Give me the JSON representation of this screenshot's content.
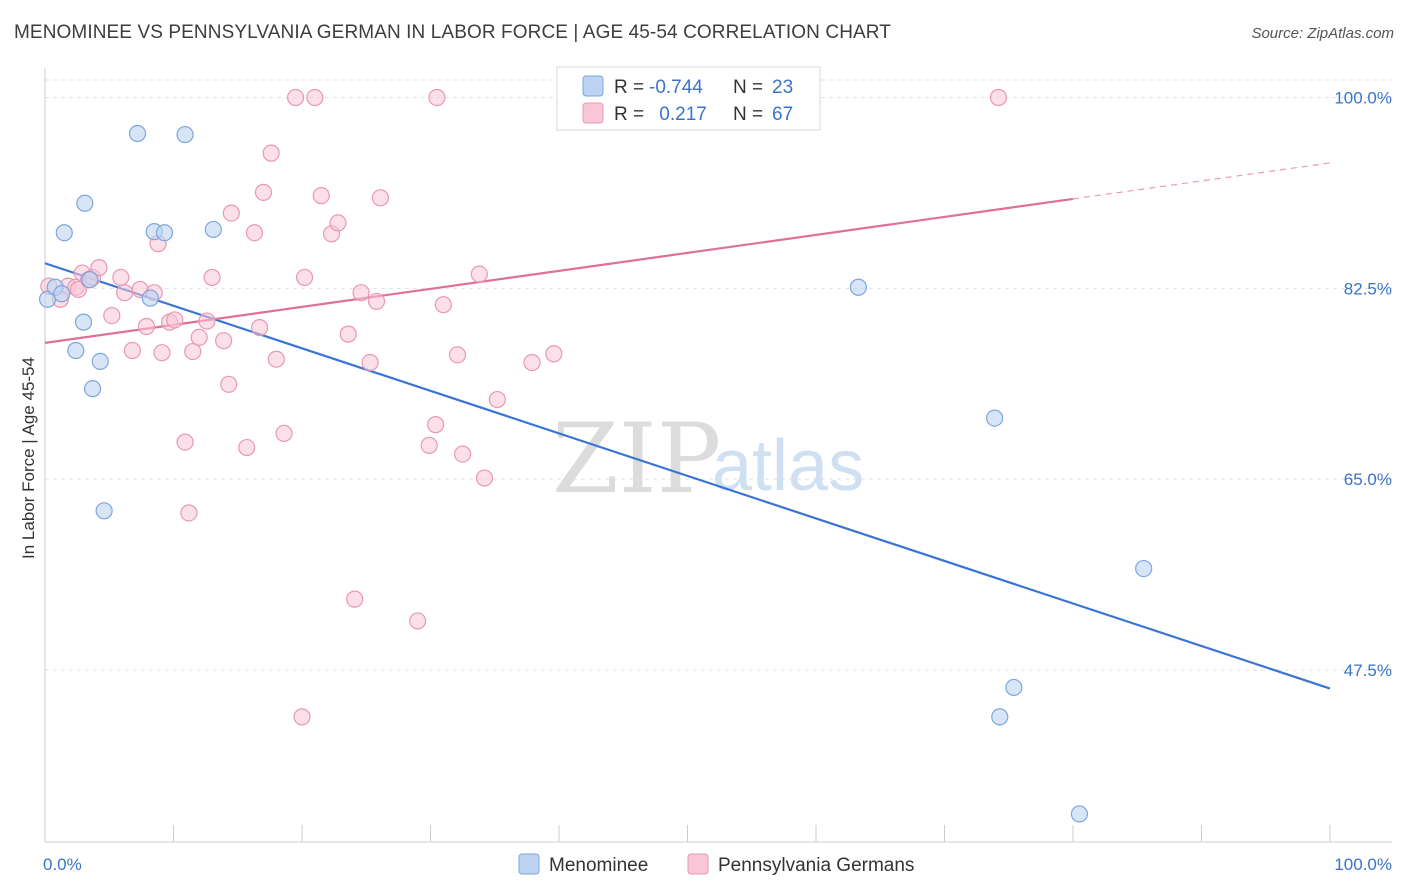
{
  "header": {
    "title": "MENOMINEE VS PENNSYLVANIA GERMAN IN LABOR FORCE | AGE 45-54 CORRELATION CHART",
    "source": "Source: ZipAtlas.com"
  },
  "watermark": {
    "zip": "ZIP",
    "atlas": "atlas"
  },
  "legend_box": {
    "rows": [
      {
        "r_label": "R =",
        "r_value": "-0.744",
        "n_label": "N =",
        "n_value": "23"
      },
      {
        "r_label": "R =",
        "r_value": " 0.217",
        "n_label": "N =",
        "n_value": "67"
      }
    ]
  },
  "bottom_legend": [
    {
      "label": "Menominee"
    },
    {
      "label": "Pennsylvania Germans"
    }
  ],
  "colors": {
    "blue_fill": "#bcd4f2",
    "blue_stroke": "#7ea6dc",
    "blue_line": "#3a74d4",
    "pink_fill": "#f8c6d6",
    "pink_stroke": "#e998b4",
    "pink_line": "#e07098",
    "grid": "#e2e2e2",
    "tick_text": "#3a74c8"
  },
  "chart_data": {
    "type": "scatter",
    "title": "MENOMINEE VS PENNSYLVANIA GERMAN IN LABOR FORCE | AGE 45-54 CORRELATION CHART",
    "xlabel": "",
    "ylabel": "In Labor Force | Age 45-54",
    "xlim": [
      0,
      100
    ],
    "ylim": [
      32,
      102
    ],
    "x_tick_labels": [
      "0.0%",
      "100.0%"
    ],
    "y_ticks": [
      47.5,
      65.0,
      82.5,
      100.0
    ],
    "y_tick_labels": [
      "47.5%",
      "65.0%",
      "82.5%",
      "100.0%"
    ],
    "grid": true,
    "series": [
      {
        "name": "Menominee",
        "r": -0.744,
        "n": 23,
        "points": [
          [
            0.2,
            81.5
          ],
          [
            0.8,
            82.6
          ],
          [
            1.3,
            82.0
          ],
          [
            1.5,
            87.6
          ],
          [
            3.0,
            79.4
          ],
          [
            2.4,
            76.8
          ],
          [
            3.1,
            90.3
          ],
          [
            3.5,
            83.3
          ],
          [
            3.7,
            73.3
          ],
          [
            4.3,
            75.8
          ],
          [
            4.6,
            62.1
          ],
          [
            7.2,
            96.7
          ],
          [
            8.2,
            81.6
          ],
          [
            8.5,
            87.7
          ],
          [
            9.3,
            87.6
          ],
          [
            10.9,
            96.6
          ],
          [
            13.1,
            87.9
          ],
          [
            63.3,
            82.6
          ],
          [
            73.9,
            70.6
          ],
          [
            74.3,
            43.2
          ],
          [
            75.4,
            45.9
          ],
          [
            80.5,
            34.3
          ],
          [
            85.5,
            56.8
          ]
        ],
        "trend": {
          "x": [
            0,
            100
          ],
          "y": [
            84.8,
            45.8
          ]
        }
      },
      {
        "name": "Pennsylvania Germans",
        "r": 0.217,
        "n": 67,
        "points": [
          [
            0.3,
            82.7
          ],
          [
            1.2,
            81.5
          ],
          [
            1.8,
            82.7
          ],
          [
            2.4,
            82.6
          ],
          [
            2.6,
            82.4
          ],
          [
            2.9,
            83.9
          ],
          [
            3.4,
            83.3
          ],
          [
            3.7,
            83.5
          ],
          [
            4.2,
            84.4
          ],
          [
            5.2,
            80.0
          ],
          [
            5.9,
            83.5
          ],
          [
            6.2,
            82.1
          ],
          [
            6.8,
            76.8
          ],
          [
            7.4,
            82.4
          ],
          [
            7.9,
            79.0
          ],
          [
            8.5,
            82.1
          ],
          [
            8.8,
            86.6
          ],
          [
            9.1,
            76.6
          ],
          [
            9.7,
            79.4
          ],
          [
            10.1,
            79.6
          ],
          [
            10.9,
            68.4
          ],
          [
            11.2,
            61.9
          ],
          [
            11.5,
            76.7
          ],
          [
            12.0,
            78.0
          ],
          [
            12.6,
            79.5
          ],
          [
            13.0,
            83.5
          ],
          [
            13.9,
            77.7
          ],
          [
            14.3,
            73.7
          ],
          [
            14.5,
            89.4
          ],
          [
            15.7,
            67.9
          ],
          [
            16.3,
            87.6
          ],
          [
            16.7,
            78.9
          ],
          [
            17.0,
            91.3
          ],
          [
            17.6,
            94.9
          ],
          [
            18.0,
            76.0
          ],
          [
            18.6,
            69.2
          ],
          [
            19.5,
            100.0
          ],
          [
            20.0,
            43.2
          ],
          [
            20.2,
            83.5
          ],
          [
            21.0,
            100.0
          ],
          [
            21.5,
            91.0
          ],
          [
            22.3,
            87.5
          ],
          [
            22.8,
            88.5
          ],
          [
            23.6,
            78.3
          ],
          [
            24.1,
            54.0
          ],
          [
            24.6,
            82.1
          ],
          [
            25.3,
            75.7
          ],
          [
            25.8,
            81.3
          ],
          [
            26.1,
            90.8
          ],
          [
            29.0,
            52.0
          ],
          [
            29.9,
            68.1
          ],
          [
            30.4,
            70.0
          ],
          [
            30.5,
            100.0
          ],
          [
            31.0,
            81.0
          ],
          [
            32.1,
            76.4
          ],
          [
            32.5,
            67.3
          ],
          [
            33.8,
            83.8
          ],
          [
            34.2,
            65.1
          ],
          [
            35.2,
            72.3
          ],
          [
            37.9,
            75.7
          ],
          [
            39.6,
            76.5
          ],
          [
            46.5,
            100.0
          ],
          [
            47.0,
            100.0
          ],
          [
            47.5,
            100.0
          ],
          [
            58.5,
            100.0
          ],
          [
            59.0,
            100.0
          ],
          [
            74.2,
            100.0
          ]
        ],
        "trend": {
          "x": [
            0,
            80
          ],
          "y": [
            77.5,
            90.7
          ]
        },
        "trend_dashed": {
          "x": [
            80,
            100
          ],
          "y": [
            90.7,
            94.0
          ]
        }
      }
    ]
  }
}
